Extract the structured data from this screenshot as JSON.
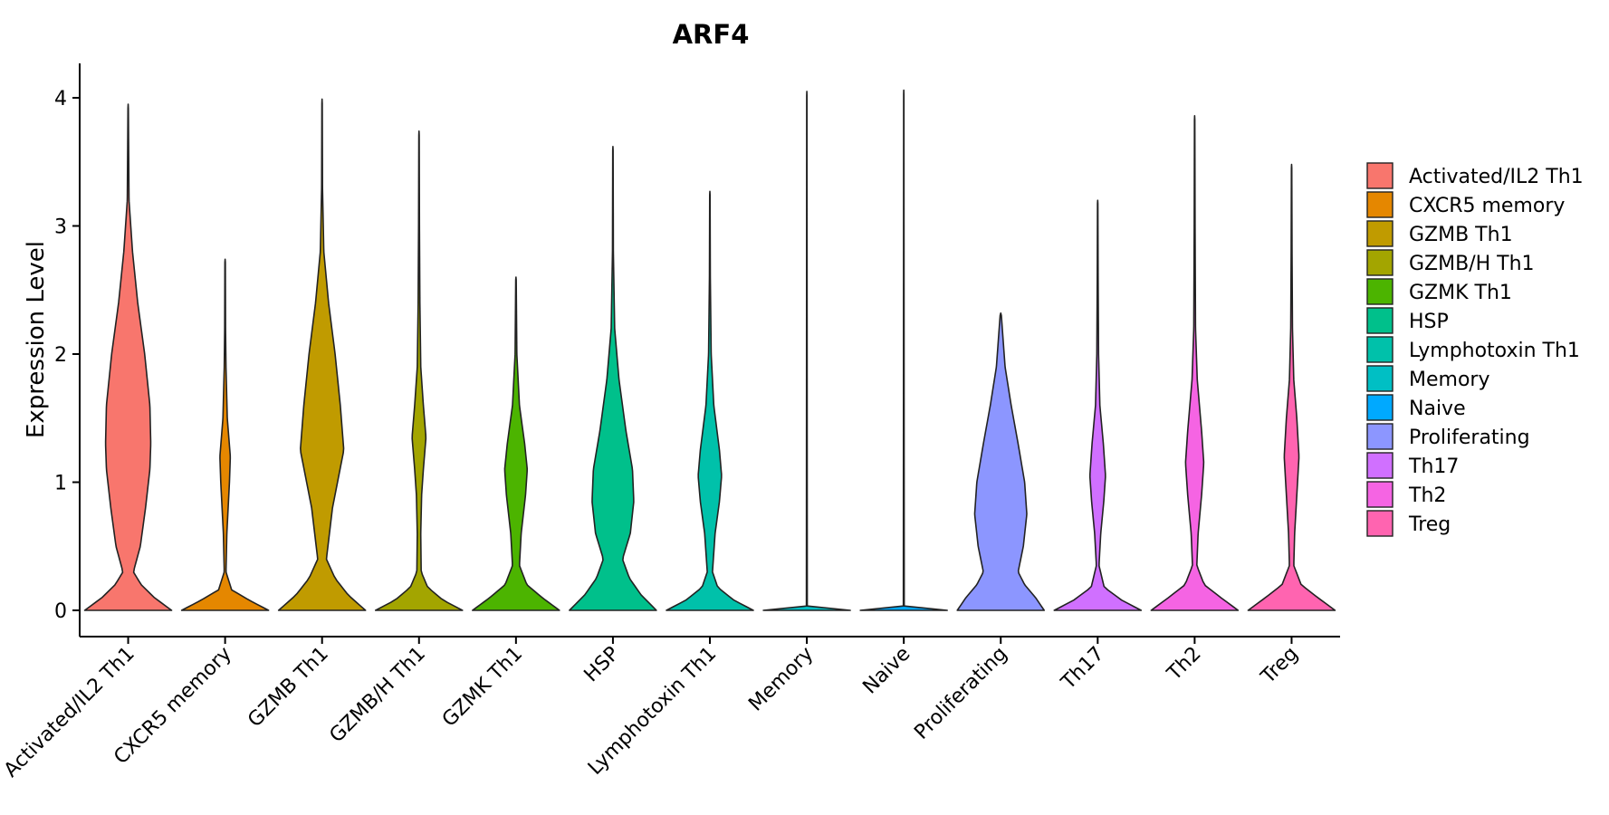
{
  "chart_data": {
    "type": "violin",
    "title": "ARF4",
    "xlabel": "",
    "ylabel": "Expression Level",
    "ylim": [
      -0.2,
      4.25
    ],
    "yticks": [
      0,
      1,
      2,
      3,
      4
    ],
    "ytick_labels": [
      "0",
      "1",
      "2",
      "3",
      "4"
    ],
    "grid": false,
    "legend_position": "right",
    "categories": [
      "Activated/IL2 Th1",
      "CXCR5 memory",
      "GZMB Th1",
      "GZMB/H Th1",
      "GZMK Th1",
      "HSP",
      "Lymphotoxin Th1",
      "Memory",
      "Naive",
      "Proliferating",
      "Th17",
      "Th2",
      "Treg"
    ],
    "series": [
      {
        "name": "Activated/IL2 Th1",
        "color": "#F8766D",
        "max": 3.95,
        "density": [
          [
            0,
            1
          ],
          [
            0.1,
            0.6
          ],
          [
            0.2,
            0.3
          ],
          [
            0.3,
            0.12
          ],
          [
            0.5,
            0.28
          ],
          [
            0.8,
            0.4
          ],
          [
            1.1,
            0.5
          ],
          [
            1.3,
            0.52
          ],
          [
            1.6,
            0.5
          ],
          [
            2.0,
            0.38
          ],
          [
            2.4,
            0.22
          ],
          [
            2.8,
            0.1
          ],
          [
            3.2,
            0.02
          ],
          [
            3.95,
            0.004
          ]
        ]
      },
      {
        "name": "CXCR5 memory",
        "color": "#E58700",
        "max": 2.74,
        "density": [
          [
            0,
            1
          ],
          [
            0.08,
            0.55
          ],
          [
            0.16,
            0.15
          ],
          [
            0.3,
            0.02
          ],
          [
            0.6,
            0.04
          ],
          [
            1.0,
            0.1
          ],
          [
            1.2,
            0.12
          ],
          [
            1.5,
            0.05
          ],
          [
            1.9,
            0.02
          ],
          [
            2.2,
            0.01
          ],
          [
            2.74,
            0.005
          ]
        ]
      },
      {
        "name": "GZMB Th1",
        "color": "#C09B00",
        "max": 3.99,
        "density": [
          [
            0,
            1
          ],
          [
            0.12,
            0.6
          ],
          [
            0.25,
            0.3
          ],
          [
            0.4,
            0.1
          ],
          [
            0.8,
            0.24
          ],
          [
            1.25,
            0.5
          ],
          [
            1.6,
            0.42
          ],
          [
            2.0,
            0.3
          ],
          [
            2.4,
            0.15
          ],
          [
            2.8,
            0.04
          ],
          [
            3.3,
            0.01
          ],
          [
            3.99,
            0.004
          ]
        ]
      },
      {
        "name": "GZMB/H Th1",
        "color": "#A3A500",
        "max": 3.74,
        "density": [
          [
            0,
            1
          ],
          [
            0.08,
            0.55
          ],
          [
            0.18,
            0.2
          ],
          [
            0.3,
            0.05
          ],
          [
            0.6,
            0.04
          ],
          [
            0.9,
            0.06
          ],
          [
            1.1,
            0.1
          ],
          [
            1.35,
            0.16
          ],
          [
            1.6,
            0.1
          ],
          [
            1.9,
            0.04
          ],
          [
            2.4,
            0.02
          ],
          [
            3.0,
            0.01
          ],
          [
            3.74,
            0.004
          ]
        ]
      },
      {
        "name": "GZMK Th1",
        "color": "#4CB400",
        "max": 2.6,
        "density": [
          [
            0,
            1
          ],
          [
            0.1,
            0.6
          ],
          [
            0.2,
            0.25
          ],
          [
            0.35,
            0.08
          ],
          [
            0.6,
            0.12
          ],
          [
            0.9,
            0.22
          ],
          [
            1.1,
            0.26
          ],
          [
            1.3,
            0.2
          ],
          [
            1.6,
            0.08
          ],
          [
            2.0,
            0.02
          ],
          [
            2.6,
            0.005
          ]
        ]
      },
      {
        "name": "HSP",
        "color": "#00C08B",
        "max": 3.62,
        "density": [
          [
            0,
            1
          ],
          [
            0.12,
            0.65
          ],
          [
            0.25,
            0.38
          ],
          [
            0.4,
            0.22
          ],
          [
            0.6,
            0.4
          ],
          [
            0.85,
            0.48
          ],
          [
            1.1,
            0.45
          ],
          [
            1.4,
            0.3
          ],
          [
            1.8,
            0.14
          ],
          [
            2.2,
            0.04
          ],
          [
            2.8,
            0.01
          ],
          [
            3.62,
            0.004
          ]
        ]
      },
      {
        "name": "Lymphotoxin Th1",
        "color": "#00C1AA",
        "max": 3.27,
        "density": [
          [
            0,
            1
          ],
          [
            0.08,
            0.55
          ],
          [
            0.18,
            0.18
          ],
          [
            0.3,
            0.06
          ],
          [
            0.6,
            0.12
          ],
          [
            0.85,
            0.22
          ],
          [
            1.05,
            0.27
          ],
          [
            1.25,
            0.22
          ],
          [
            1.6,
            0.09
          ],
          [
            2.0,
            0.03
          ],
          [
            2.6,
            0.01
          ],
          [
            3.27,
            0.004
          ]
        ]
      },
      {
        "name": "Memory",
        "color": "#00BFC4",
        "max": 4.05,
        "density": [
          [
            0,
            1
          ],
          [
            0.01,
            0.4
          ],
          [
            0.03,
            0.01
          ],
          [
            4.05,
            0.003
          ]
        ]
      },
      {
        "name": "Naive",
        "color": "#00A9FF",
        "max": 4.06,
        "density": [
          [
            0,
            1
          ],
          [
            0.01,
            0.4
          ],
          [
            0.03,
            0.01
          ],
          [
            4.05,
            0.003
          ]
        ]
      },
      {
        "name": "Proliferating",
        "color": "#8C96FF",
        "max": 2.32,
        "density": [
          [
            0,
            1
          ],
          [
            0.1,
            0.8
          ],
          [
            0.2,
            0.55
          ],
          [
            0.3,
            0.4
          ],
          [
            0.5,
            0.52
          ],
          [
            0.75,
            0.6
          ],
          [
            1.0,
            0.55
          ],
          [
            1.3,
            0.4
          ],
          [
            1.6,
            0.24
          ],
          [
            1.9,
            0.1
          ],
          [
            2.32,
            0.01
          ]
        ]
      },
      {
        "name": "Th17",
        "color": "#D070FF",
        "max": 3.2,
        "density": [
          [
            0,
            1
          ],
          [
            0.08,
            0.55
          ],
          [
            0.18,
            0.15
          ],
          [
            0.35,
            0.03
          ],
          [
            0.6,
            0.07
          ],
          [
            0.85,
            0.14
          ],
          [
            1.05,
            0.18
          ],
          [
            1.3,
            0.13
          ],
          [
            1.6,
            0.05
          ],
          [
            2.0,
            0.02
          ],
          [
            2.6,
            0.01
          ],
          [
            3.2,
            0.004
          ]
        ]
      },
      {
        "name": "Th2",
        "color": "#F564E3",
        "max": 3.86,
        "density": [
          [
            0,
            1
          ],
          [
            0.1,
            0.6
          ],
          [
            0.2,
            0.22
          ],
          [
            0.35,
            0.05
          ],
          [
            0.6,
            0.08
          ],
          [
            0.9,
            0.16
          ],
          [
            1.15,
            0.21
          ],
          [
            1.4,
            0.16
          ],
          [
            1.8,
            0.06
          ],
          [
            2.2,
            0.02
          ],
          [
            3.0,
            0.01
          ],
          [
            3.86,
            0.004
          ]
        ]
      },
      {
        "name": "Treg",
        "color": "#FF64B0",
        "max": 3.48,
        "density": [
          [
            0,
            1
          ],
          [
            0.1,
            0.6
          ],
          [
            0.2,
            0.22
          ],
          [
            0.35,
            0.05
          ],
          [
            0.6,
            0.07
          ],
          [
            0.9,
            0.12
          ],
          [
            1.2,
            0.17
          ],
          [
            1.5,
            0.12
          ],
          [
            1.8,
            0.05
          ],
          [
            2.2,
            0.02
          ],
          [
            2.8,
            0.01
          ],
          [
            3.48,
            0.004
          ]
        ]
      }
    ]
  }
}
